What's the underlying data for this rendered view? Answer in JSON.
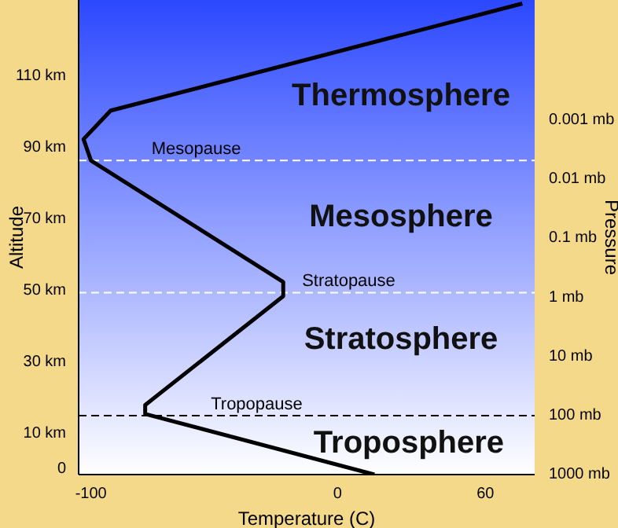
{
  "chart_data": {
    "type": "line",
    "xlabel": "Temperature (C)",
    "ylabel": "Altitude",
    "y2label": "Pressure",
    "x": [
      15,
      -78,
      -78,
      -22,
      -22,
      -100,
      -103,
      -92,
      75
    ],
    "series": [
      {
        "color": "#000000",
        "values": [
          -2,
          15,
          17.5,
          48,
          52,
          86,
          92,
          100,
          130
        ]
      }
    ],
    "xlim": [
      -105,
      80
    ],
    "xticks": [
      -100,
      0,
      60
    ],
    "ylim": [
      -2,
      131
    ],
    "yticks": [
      0,
      {
        "value": 10,
        "label": "10 km"
      },
      {
        "value": 30,
        "label": "30 km"
      },
      {
        "value": 50,
        "label": "50 km"
      },
      {
        "value": 70,
        "label": "70 km"
      },
      {
        "value": 90,
        "label": "90 km"
      },
      {
        "value": 110,
        "label": "110 km"
      }
    ],
    "log": "y2",
    "y2lim": [
      1100,
      1e-05
    ],
    "y2ticks": [
      {
        "value": 1000,
        "label": "1000 mb"
      },
      {
        "value": 100,
        "label": "100 mb"
      },
      {
        "value": 10,
        "label": "10 mb"
      },
      {
        "value": 1,
        "label": "1 mb"
      },
      {
        "value": 0.1,
        "label": "0.1 mb"
      },
      {
        "value": 0.01,
        "label": "0.01 mb"
      },
      {
        "value": 0.001,
        "label": "0.001 mb"
      }
    ],
    "marker": "none",
    "line_style": "solid",
    "grid": false,
    "ref_lines": [
      {
        "axis": "y",
        "value": 86,
        "label": "Mesopause",
        "color": "#ffffff",
        "line_style": "dashed"
      },
      {
        "axis": "y",
        "value": 49,
        "label": "Stratopause",
        "color": "#ffffff",
        "line_style": "dashed"
      },
      {
        "axis": "y",
        "value": 14.5,
        "label": "Tropopause",
        "color": "#000000",
        "line_style": "dashed"
      }
    ],
    "annotations": [
      "Thermosphere",
      "Mesosphere",
      "Stratosphere",
      "Troposphere"
    ]
  }
}
